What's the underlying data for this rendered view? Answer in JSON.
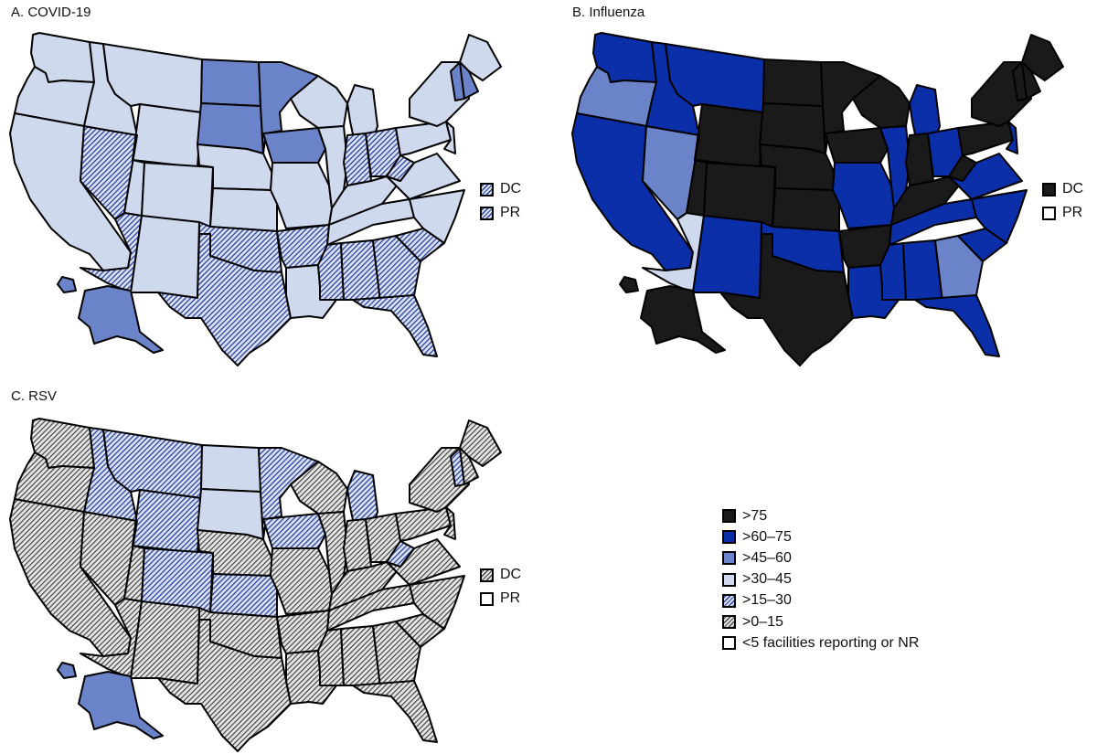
{
  "panels": [
    {
      "title": "A. COVID-19",
      "dc": "DC",
      "pr": "PR",
      "dc_category": ">15–30",
      "pr_category": ">15–30"
    },
    {
      "title": "B. Influenza",
      "dc": "DC",
      "pr": "PR",
      "dc_category": ">75",
      "pr_category": "<5 facilities reporting or NR"
    },
    {
      "title": "C. RSV",
      "dc": "DC",
      "pr": "PR",
      "dc_category": ">0–15",
      "pr_category": "<5 facilities reporting or NR"
    }
  ],
  "legend": [
    {
      "label": ">75",
      "key": "c1"
    },
    {
      "label": ">60–75",
      "key": "c2"
    },
    {
      "label": ">45–60",
      "key": "c3"
    },
    {
      "label": ">30–45",
      "key": "c4"
    },
    {
      "label": ">15–30",
      "key": "c5"
    },
    {
      "label": ">0–15",
      "key": "c6"
    },
    {
      "label": "<5 facilities reporting or NR",
      "key": "c7"
    }
  ],
  "colors": {
    "c1": "#1a1a1a",
    "c2": "#0a2fa8",
    "c3": "#6b83c8",
    "c4": "#cfd9ee",
    "c5": "#2a40a0",
    "c6": "#444444",
    "c7": "#ffffff"
  },
  "state_categories": {
    "covid": {
      "WA": "c4",
      "OR": "c4",
      "CA": "c4",
      "ID": "c4",
      "MT": "c4",
      "WY": "c4",
      "NV": "c5",
      "UT": "c4",
      "CO": "c4",
      "AZ": "c5",
      "NM": "c4",
      "ND": "c3",
      "SD": "c3",
      "NE": "c4",
      "KS": "c4",
      "OK": "c5",
      "TX": "c5",
      "MN": "c3",
      "IA": "c3",
      "MO": "c4",
      "AR": "c5",
      "LA": "c4",
      "WI": "c4",
      "IL": "c4",
      "MI": "c4",
      "IN": "c5",
      "OH": "c5",
      "KY": "c4",
      "TN": "c4",
      "MS": "c5",
      "AL": "c5",
      "GA": "c5",
      "FL": "c5",
      "SC": "c5",
      "NC": "c4",
      "VA": "c4",
      "WV": "c5",
      "PA": "c4",
      "NY": "c4",
      "ME": "c4",
      "VT": "c3",
      "NH": "c3",
      "NJ": "c4",
      "AK": "c3",
      "HI": "c3"
    },
    "flu": {
      "WA": "c2",
      "OR": "c3",
      "CA": "c2",
      "ID": "c2",
      "MT": "c2",
      "WY": "c1",
      "NV": "c3",
      "UT": "c1",
      "CO": "c1",
      "AZ": "c4",
      "NM": "c2",
      "ND": "c1",
      "SD": "c1",
      "NE": "c1",
      "KS": "c1",
      "OK": "c2",
      "TX": "c1",
      "MN": "c1",
      "IA": "c1",
      "MO": "c2",
      "AR": "c1",
      "LA": "c2",
      "WI": "c1",
      "IL": "c2",
      "MI": "c2",
      "IN": "c1",
      "OH": "c2",
      "KY": "c1",
      "TN": "c2",
      "MS": "c2",
      "AL": "c2",
      "GA": "c3",
      "FL": "c2",
      "SC": "c2",
      "NC": "c2",
      "VA": "c2",
      "WV": "c1",
      "PA": "c1",
      "NY": "c1",
      "ME": "c1",
      "VT": "c1",
      "NH": "c1",
      "NJ": "c2",
      "AK": "c1",
      "HI": "c1"
    },
    "rsv": {
      "WA": "c6",
      "OR": "c6",
      "CA": "c6",
      "ID": "c5",
      "MT": "c5",
      "WY": "c5",
      "NV": "c6",
      "UT": "c6",
      "CO": "c5",
      "AZ": "c6",
      "NM": "c6",
      "ND": "c4",
      "SD": "c4",
      "NE": "c6",
      "KS": "c5",
      "OK": "c6",
      "TX": "c6",
      "MN": "c5",
      "IA": "c5",
      "MO": "c6",
      "AR": "c6",
      "LA": "c6",
      "WI": "c6",
      "IL": "c6",
      "MI": "c5",
      "IN": "c6",
      "OH": "c6",
      "KY": "c6",
      "TN": "c6",
      "MS": "c6",
      "AL": "c6",
      "GA": "c6",
      "FL": "c6",
      "SC": "c6",
      "NC": "c6",
      "VA": "c6",
      "WV": "c5",
      "PA": "c6",
      "NY": "c6",
      "ME": "c6",
      "VT": "c5",
      "NH": "c6",
      "NJ": "c6",
      "AK": "c3",
      "HI": "c3"
    }
  }
}
